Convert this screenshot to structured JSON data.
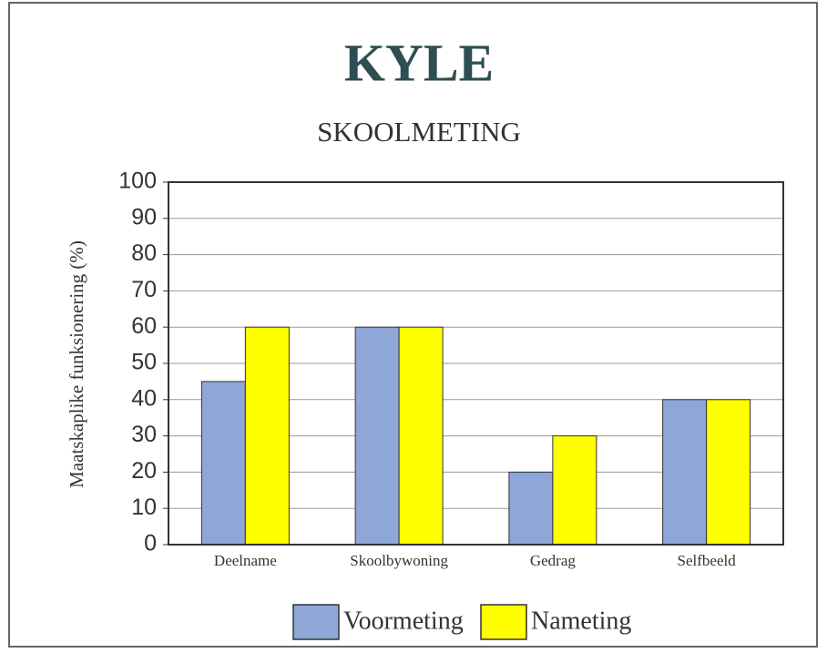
{
  "chart_data": {
    "type": "bar",
    "title": "KYLE",
    "subtitle": "SKOOLMETING",
    "y_label": "Maatskaplike funksionering (%)",
    "categories": [
      "Deelname",
      "Skoolbywoning",
      "Gedrag",
      "Selfbeeld"
    ],
    "series": [
      {
        "name": "Voormeting",
        "color": "#8ea6d8",
        "values": [
          45,
          60,
          20,
          40
        ]
      },
      {
        "name": "Nameting",
        "color": "#ffff00",
        "values": [
          60,
          60,
          30,
          40
        ]
      }
    ],
    "ylim": [
      0,
      100
    ],
    "yticks": [
      0,
      10,
      20,
      30,
      40,
      50,
      60,
      70,
      80,
      90,
      100
    ],
    "grid": true,
    "legend": "bottom"
  }
}
